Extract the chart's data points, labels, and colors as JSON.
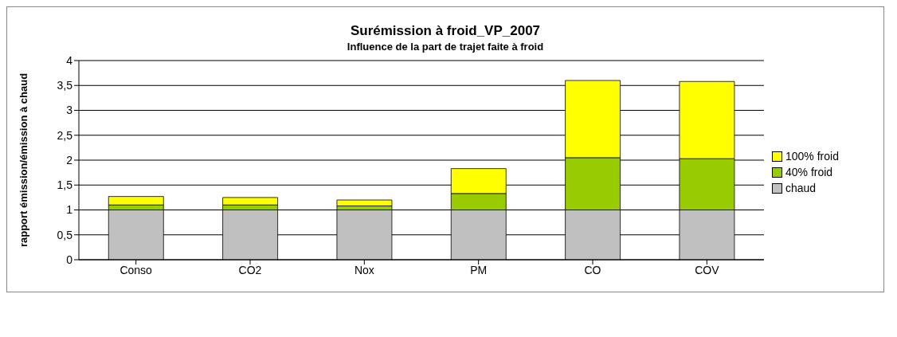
{
  "chart_data": {
    "type": "bar",
    "title": "Surémission à froid_VP_2007",
    "subtitle": "Influence de la part de trajet faite à froid",
    "ylabel": "rapport émission/émission à chaud",
    "categories": [
      "Conso",
      "CO2",
      "Nox",
      "PM",
      "CO",
      "COV"
    ],
    "stacked": true,
    "series": [
      {
        "name": "chaud",
        "color": "#c0c0c0",
        "values": [
          1,
          1,
          1,
          1,
          1,
          1
        ]
      },
      {
        "name": "40% froid",
        "color": "#99cc00",
        "values": [
          0.1,
          0.1,
          0.08,
          0.33,
          1.05,
          1.03
        ]
      },
      {
        "name": "100% froid",
        "color": "#ffff00",
        "values": [
          0.17,
          0.15,
          0.12,
          0.5,
          1.55,
          1.55
        ]
      }
    ],
    "ylim": [
      0,
      4
    ],
    "yticks": [
      0,
      {
        "value": 0.5,
        "label": "0,5"
      },
      1,
      {
        "value": 1.5,
        "label": "1,5"
      },
      2,
      {
        "value": 2.5,
        "label": "2,5"
      },
      3,
      {
        "value": 3.5,
        "label": "3,5"
      },
      4
    ],
    "grid": "y",
    "legend": "right"
  }
}
